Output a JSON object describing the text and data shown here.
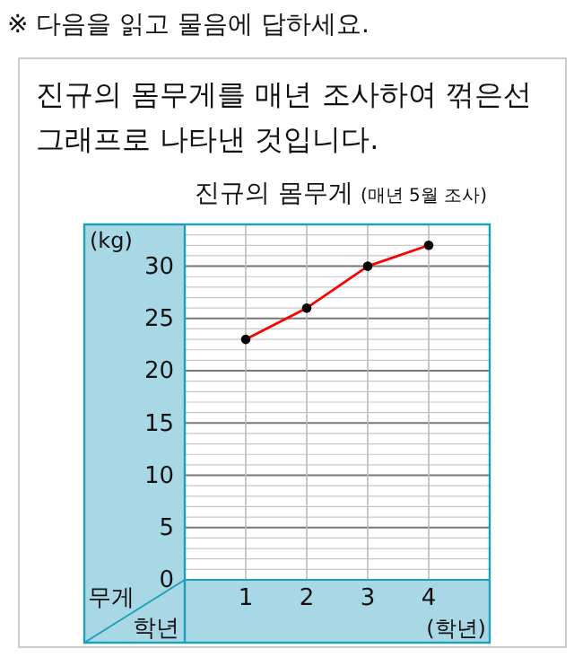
{
  "chart_data": {
    "type": "line",
    "title": "진규의 몸무게",
    "subtitle": "(매년 5월 조사)",
    "annotations": [
      "※ 다음을 읽고 물음에 답하세요.",
      "진규의 몸무게를 매년 조사하여 꺾은선 그래프로 나타낸 것입니다.",
      "무게",
      "학년"
    ],
    "xlabel": "(학년)",
    "ylabel": "(kg)",
    "x": [
      1,
      2,
      3,
      4
    ],
    "series": [
      {
        "color": "#ff0000",
        "values": [
          23,
          26,
          30,
          32
        ]
      }
    ],
    "xlim": [
      0,
      5
    ],
    "xticks": [
      1,
      2,
      3,
      4
    ],
    "ylim": [
      0,
      34
    ],
    "yticks": [
      0,
      5,
      10,
      15,
      20,
      25,
      30
    ],
    "grid": true,
    "marker": "circle",
    "line_style": "solid"
  }
}
